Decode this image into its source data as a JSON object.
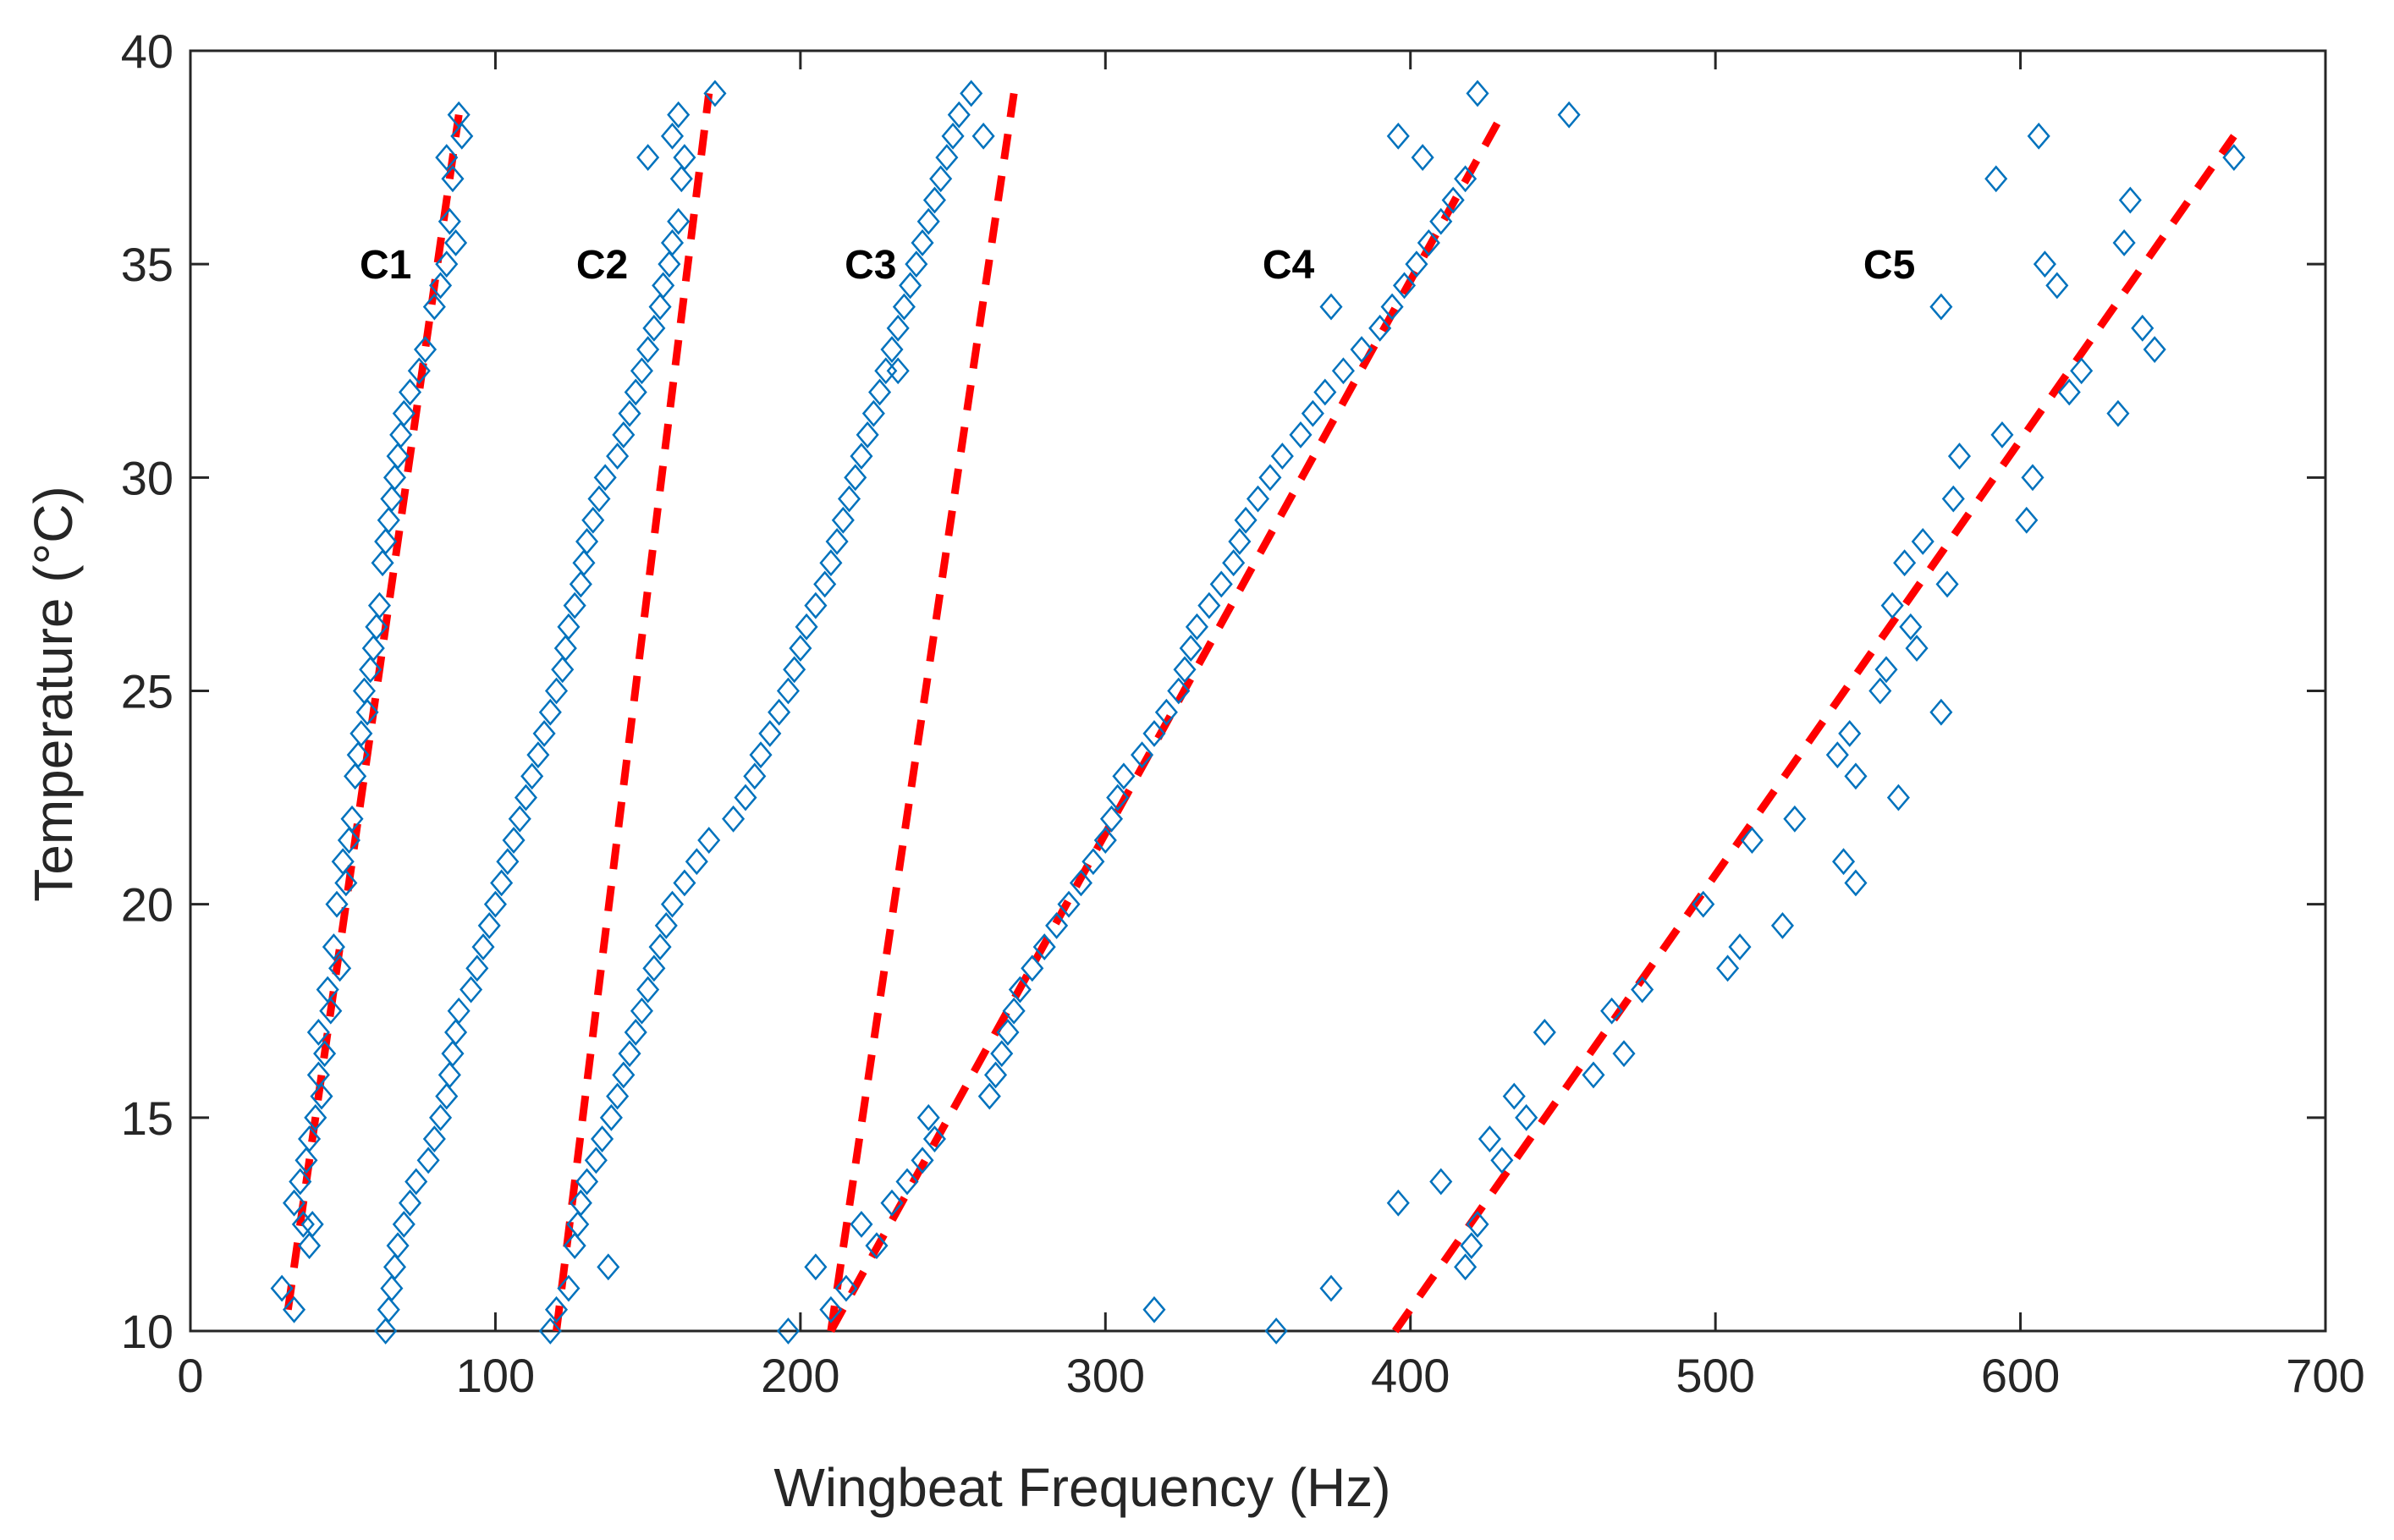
{
  "chart_data": {
    "type": "scatter",
    "title": "",
    "xlabel": "Wingbeat Frequency (Hz)",
    "ylabel": "Temperature (°C)",
    "xlim": [
      0,
      700
    ],
    "ylim": [
      10,
      40
    ],
    "xticks": [
      0,
      100,
      200,
      300,
      400,
      500,
      600,
      700
    ],
    "yticks": [
      10,
      15,
      20,
      25,
      30,
      35,
      40
    ],
    "grid": false,
    "marker_color": "#0072BD",
    "fit_color": "#FF0000",
    "clusters": [
      {
        "name": "C1",
        "label_pos": [
          64,
          35
        ],
        "fit": [
          [
            32,
            10.5
          ],
          [
            88,
            38.5
          ]
        ],
        "points": [
          [
            30,
            11
          ],
          [
            34,
            10.5
          ],
          [
            34,
            13
          ],
          [
            36,
            13.5
          ],
          [
            37,
            12.5
          ],
          [
            38,
            14
          ],
          [
            39,
            12
          ],
          [
            39,
            14.5
          ],
          [
            40,
            12.5
          ],
          [
            41,
            15
          ],
          [
            42,
            16
          ],
          [
            42,
            17
          ],
          [
            43,
            15.5
          ],
          [
            44,
            16.5
          ],
          [
            45,
            18
          ],
          [
            46,
            17.5
          ],
          [
            47,
            19
          ],
          [
            48,
            20
          ],
          [
            49,
            18.5
          ],
          [
            50,
            21
          ],
          [
            51,
            20.5
          ],
          [
            52,
            21.5
          ],
          [
            53,
            22
          ],
          [
            54,
            23
          ],
          [
            55,
            23.5
          ],
          [
            56,
            24
          ],
          [
            57,
            25
          ],
          [
            58,
            24.5
          ],
          [
            59,
            25.5
          ],
          [
            60,
            26
          ],
          [
            61,
            26.5
          ],
          [
            62,
            27
          ],
          [
            63,
            28
          ],
          [
            64,
            28.5
          ],
          [
            65,
            29
          ],
          [
            66,
            29.5
          ],
          [
            67,
            30
          ],
          [
            68,
            30.5
          ],
          [
            69,
            31
          ],
          [
            70,
            31.5
          ],
          [
            72,
            32
          ],
          [
            75,
            32.5
          ],
          [
            77,
            33
          ],
          [
            80,
            34
          ],
          [
            82,
            34.5
          ],
          [
            84,
            35
          ],
          [
            85,
            36
          ],
          [
            86,
            37
          ],
          [
            84,
            37.5
          ],
          [
            87,
            35.5
          ],
          [
            88,
            38.5
          ],
          [
            89,
            38
          ]
        ]
      },
      {
        "name": "C2",
        "label_pos": [
          135,
          35
        ],
        "fit": [
          [
            120,
            10
          ],
          [
            170,
            39
          ]
        ],
        "points": [
          [
            64,
            10
          ],
          [
            65,
            10.5
          ],
          [
            66,
            11
          ],
          [
            67,
            11.5
          ],
          [
            68,
            12
          ],
          [
            70,
            12.5
          ],
          [
            72,
            13
          ],
          [
            74,
            13.5
          ],
          [
            78,
            14
          ],
          [
            80,
            14.5
          ],
          [
            82,
            15
          ],
          [
            84,
            15.5
          ],
          [
            85,
            16
          ],
          [
            86,
            16.5
          ],
          [
            87,
            17
          ],
          [
            88,
            17.5
          ],
          [
            92,
            18
          ],
          [
            94,
            18.5
          ],
          [
            96,
            19
          ],
          [
            98,
            19.5
          ],
          [
            100,
            20
          ],
          [
            102,
            20.5
          ],
          [
            104,
            21
          ],
          [
            106,
            21.5
          ],
          [
            108,
            22
          ],
          [
            110,
            22.5
          ],
          [
            112,
            23
          ],
          [
            114,
            23.5
          ],
          [
            116,
            24
          ],
          [
            118,
            24.5
          ],
          [
            120,
            25
          ],
          [
            122,
            25.5
          ],
          [
            123,
            26
          ],
          [
            124,
            26.5
          ],
          [
            126,
            27
          ],
          [
            128,
            27.5
          ],
          [
            129,
            28
          ],
          [
            130,
            28.5
          ],
          [
            132,
            29
          ],
          [
            134,
            29.5
          ],
          [
            136,
            30
          ],
          [
            140,
            30.5
          ],
          [
            142,
            31
          ],
          [
            144,
            31.5
          ],
          [
            146,
            32
          ],
          [
            148,
            32.5
          ],
          [
            150,
            33
          ],
          [
            152,
            33.5
          ],
          [
            154,
            34
          ],
          [
            155,
            34.5
          ],
          [
            157,
            35
          ],
          [
            158,
            35.5
          ],
          [
            160,
            36
          ],
          [
            161,
            37
          ],
          [
            162,
            37.5
          ],
          [
            158,
            38
          ],
          [
            160,
            38.5
          ],
          [
            172,
            39
          ],
          [
            150,
            37.5
          ]
        ]
      },
      {
        "name": "C3",
        "label_pos": [
          223,
          35
        ],
        "fit": [
          [
            210,
            10
          ],
          [
            270,
            39
          ]
        ],
        "points": [
          [
            118,
            10
          ],
          [
            120,
            10.5
          ],
          [
            124,
            11
          ],
          [
            126,
            12
          ],
          [
            127,
            12.5
          ],
          [
            128,
            13
          ],
          [
            130,
            13.5
          ],
          [
            133,
            14
          ],
          [
            135,
            14.5
          ],
          [
            137,
            11.5
          ],
          [
            138,
            15
          ],
          [
            140,
            15.5
          ],
          [
            142,
            16
          ],
          [
            144,
            16.5
          ],
          [
            146,
            17
          ],
          [
            148,
            17.5
          ],
          [
            150,
            18
          ],
          [
            152,
            18.5
          ],
          [
            154,
            19
          ],
          [
            156,
            19.5
          ],
          [
            158,
            20
          ],
          [
            162,
            20.5
          ],
          [
            166,
            21
          ],
          [
            170,
            21.5
          ],
          [
            178,
            22
          ],
          [
            182,
            22.5
          ],
          [
            185,
            23
          ],
          [
            187,
            23.5
          ],
          [
            190,
            24
          ],
          [
            193,
            24.5
          ],
          [
            196,
            25
          ],
          [
            198,
            25.5
          ],
          [
            200,
            26
          ],
          [
            202,
            26.5
          ],
          [
            205,
            27
          ],
          [
            208,
            27.5
          ],
          [
            210,
            28
          ],
          [
            212,
            28.5
          ],
          [
            214,
            29
          ],
          [
            216,
            29.5
          ],
          [
            218,
            30
          ],
          [
            220,
            30.5
          ],
          [
            222,
            31
          ],
          [
            224,
            31.5
          ],
          [
            226,
            32
          ],
          [
            228,
            32.5
          ],
          [
            230,
            33
          ],
          [
            232,
            33.5
          ],
          [
            234,
            34
          ],
          [
            236,
            34.5
          ],
          [
            238,
            35
          ],
          [
            240,
            35.5
          ],
          [
            242,
            36
          ],
          [
            244,
            36.5
          ],
          [
            246,
            37
          ],
          [
            248,
            37.5
          ],
          [
            250,
            38
          ],
          [
            252,
            38.5
          ],
          [
            256,
            39
          ],
          [
            260,
            38
          ],
          [
            232,
            32.5
          ]
        ]
      },
      {
        "name": "C4",
        "label_pos": [
          360,
          35
        ],
        "fit": [
          [
            210,
            10
          ],
          [
            430,
            38.5
          ]
        ],
        "points": [
          [
            196,
            10
          ],
          [
            205,
            11.5
          ],
          [
            210,
            10.5
          ],
          [
            215,
            11
          ],
          [
            220,
            12.5
          ],
          [
            225,
            12
          ],
          [
            230,
            13
          ],
          [
            235,
            13.5
          ],
          [
            240,
            14
          ],
          [
            242,
            15
          ],
          [
            244,
            14.5
          ],
          [
            262,
            15.5
          ],
          [
            264,
            16
          ],
          [
            266,
            16.5
          ],
          [
            268,
            17
          ],
          [
            270,
            17.5
          ],
          [
            272,
            18
          ],
          [
            276,
            18.5
          ],
          [
            280,
            19
          ],
          [
            284,
            19.5
          ],
          [
            288,
            20
          ],
          [
            292,
            20.5
          ],
          [
            296,
            21
          ],
          [
            300,
            21.5
          ],
          [
            302,
            22
          ],
          [
            304,
            22.5
          ],
          [
            306,
            23
          ],
          [
            312,
            23.5
          ],
          [
            316,
            24
          ],
          [
            320,
            24.5
          ],
          [
            324,
            25
          ],
          [
            326,
            25.5
          ],
          [
            328,
            26
          ],
          [
            330,
            26.5
          ],
          [
            334,
            27
          ],
          [
            338,
            27.5
          ],
          [
            342,
            28
          ],
          [
            344,
            28.5
          ],
          [
            346,
            29
          ],
          [
            350,
            29.5
          ],
          [
            354,
            30
          ],
          [
            358,
            30.5
          ],
          [
            364,
            31
          ],
          [
            368,
            31.5
          ],
          [
            372,
            32
          ],
          [
            378,
            32.5
          ],
          [
            384,
            33
          ],
          [
            390,
            33.5
          ],
          [
            394,
            34
          ],
          [
            398,
            34.5
          ],
          [
            402,
            35
          ],
          [
            406,
            35.5
          ],
          [
            410,
            36
          ],
          [
            414,
            36.5
          ],
          [
            418,
            37
          ],
          [
            404,
            37.5
          ],
          [
            396,
            38
          ],
          [
            422,
            39
          ],
          [
            452,
            38.5
          ],
          [
            374,
            34
          ],
          [
            316,
            10.5
          ],
          [
            356,
            10
          ],
          [
            374,
            11
          ]
        ]
      },
      {
        "name": "C5",
        "label_pos": [
          557,
          35
        ],
        "fit": [
          [
            395,
            10
          ],
          [
            670,
            38
          ]
        ],
        "points": [
          [
            396,
            13
          ],
          [
            410,
            13.5
          ],
          [
            418,
            11.5
          ],
          [
            420,
            12
          ],
          [
            422,
            12.5
          ],
          [
            426,
            14.5
          ],
          [
            430,
            14
          ],
          [
            434,
            15.5
          ],
          [
            438,
            15
          ],
          [
            444,
            17
          ],
          [
            460,
            16
          ],
          [
            466,
            17.5
          ],
          [
            470,
            16.5
          ],
          [
            476,
            18
          ],
          [
            496,
            20
          ],
          [
            504,
            18.5
          ],
          [
            508,
            19
          ],
          [
            512,
            21.5
          ],
          [
            522,
            19.5
          ],
          [
            526,
            22
          ],
          [
            540,
            23.5
          ],
          [
            542,
            21
          ],
          [
            544,
            24
          ],
          [
            546,
            20.5
          ],
          [
            546,
            23
          ],
          [
            554,
            25
          ],
          [
            556,
            25.5
          ],
          [
            558,
            27
          ],
          [
            560,
            22.5
          ],
          [
            562,
            28
          ],
          [
            564,
            26.5
          ],
          [
            566,
            26
          ],
          [
            568,
            28.5
          ],
          [
            574,
            24.5
          ],
          [
            576,
            27.5
          ],
          [
            578,
            29.5
          ],
          [
            580,
            30.5
          ],
          [
            574,
            34
          ],
          [
            592,
            37
          ],
          [
            594,
            31
          ],
          [
            602,
            29
          ],
          [
            604,
            30
          ],
          [
            606,
            38
          ],
          [
            608,
            35
          ],
          [
            612,
            34.5
          ],
          [
            616,
            32
          ],
          [
            620,
            32.5
          ],
          [
            632,
            31.5
          ],
          [
            634,
            35.5
          ],
          [
            636,
            36.5
          ],
          [
            640,
            33.5
          ],
          [
            644,
            33
          ],
          [
            670,
            37.5
          ]
        ]
      }
    ]
  }
}
